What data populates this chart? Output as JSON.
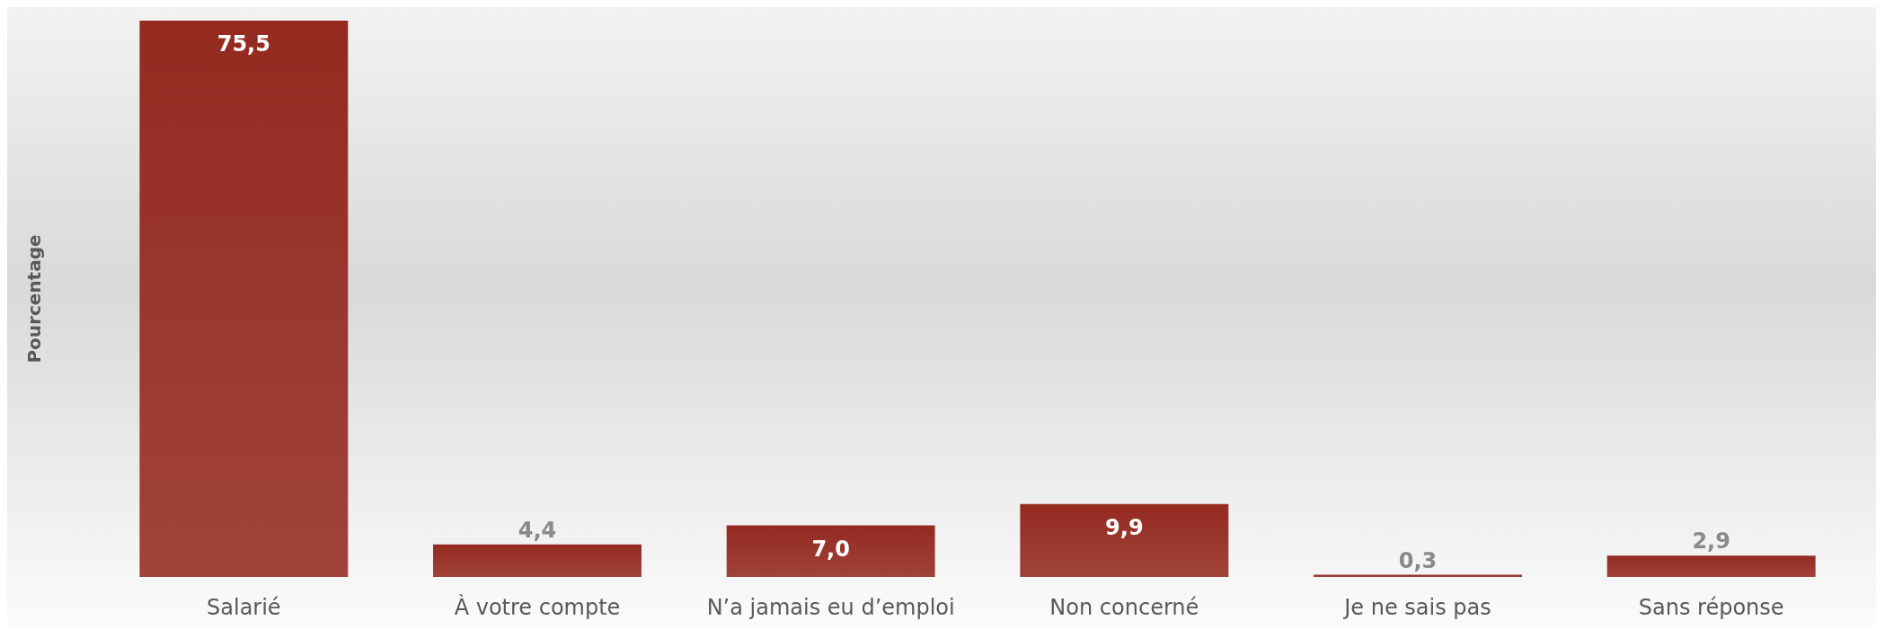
{
  "chart_data": {
    "type": "bar",
    "ylabel": "Pourcentage",
    "categories": [
      "Salarié",
      "À votre compte",
      "N’a jamais eu d’emploi",
      "Non concerné",
      "Je ne sais pas",
      "Sans réponse"
    ],
    "values": [
      75.5,
      4.4,
      7.0,
      9.9,
      0.3,
      2.9
    ],
    "value_labels": [
      "75,5",
      "4,4",
      "7,0",
      "9,9",
      "0,3",
      "2,9"
    ],
    "color": "#942a20",
    "grid": false
  }
}
